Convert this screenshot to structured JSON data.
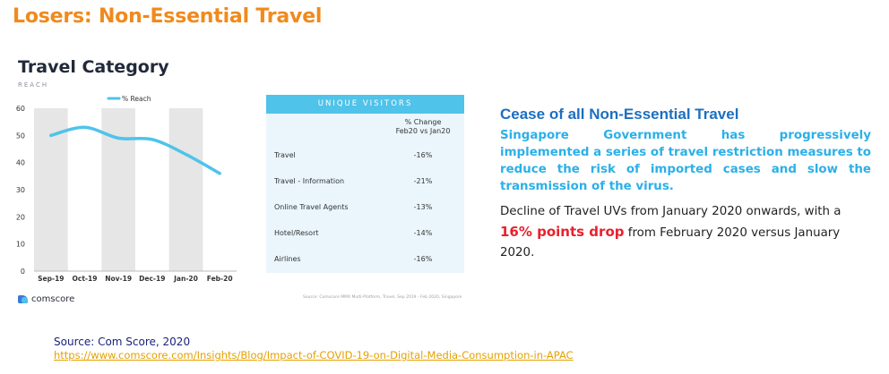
{
  "slide": {
    "title": "Losers: Non-Essential Travel"
  },
  "panel": {
    "title": "Travel Category",
    "subtitle": "REACH"
  },
  "chart_data": {
    "type": "line",
    "categories": [
      "Sep-19",
      "Oct-19",
      "Nov-19",
      "Dec-19",
      "Jan-20",
      "Feb-20"
    ],
    "series": [
      {
        "name": "% Reach",
        "values": [
          50,
          53,
          49,
          48.5,
          43,
          36
        ]
      }
    ],
    "ylim": [
      0,
      60
    ],
    "yticks": [
      "0",
      "10",
      "20",
      "30",
      "40",
      "50",
      "60"
    ],
    "legend_position": "top-center",
    "grid": "alternating-column-bands",
    "colors": {
      "line": "#4fc3ea",
      "band": "#e6e6e6"
    }
  },
  "unique_visitors": {
    "header": "UNIQUE VISITORS",
    "col_header_1": "% Change",
    "col_header_2": "Feb20 vs Jan20",
    "rows": [
      {
        "name": "Travel",
        "value": "-16%"
      },
      {
        "name": "Travel - Information",
        "value": "-21%"
      },
      {
        "name": "Online Travel Agents",
        "value": "-13%"
      },
      {
        "name": "Hotel/Resort",
        "value": "-14%"
      },
      {
        "name": "Airlines",
        "value": "-16%"
      }
    ]
  },
  "brand": {
    "logo_text": "comscore",
    "source_note": "Source: Comscore MMX Multi-Platform, Travel, Sep 2019 - Feb 2020, Singapore"
  },
  "text_block": {
    "heading": "Cease of all Non-Essential Travel",
    "body": "Singapore Government has progressively implemented a series of travel restriction measures to reduce the risk of imported cases and slow the transmission of the virus.",
    "decline_pre": "Decline of Travel UVs from January 2020 onwards, with a ",
    "decline_highlight": "16% points drop",
    "decline_post": " from February 2020 versus January 2020."
  },
  "source": {
    "label": "Source: Com Score, 2020",
    "url": "https://www.comscore.com/Insights/Blog/Impact-of-COVID-19-on-Digital-Media-Consumption-in-APAC"
  }
}
